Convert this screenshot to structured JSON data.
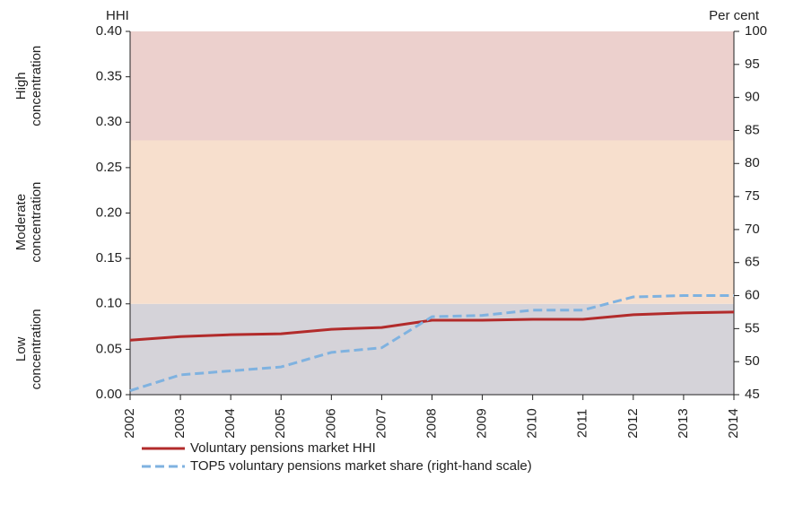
{
  "chart_data": {
    "type": "line",
    "y_axis_label": "HHI",
    "y2_axis_label": "Per cent",
    "categories": [
      "2002",
      "2003",
      "2004",
      "2005",
      "2006",
      "2007",
      "2008",
      "2009",
      "2010",
      "2011",
      "2012",
      "2013",
      "2014"
    ],
    "series": [
      {
        "name": "Voluntary pensions market HHI",
        "color": "#b22b2b",
        "dashed": false,
        "values": [
          0.06,
          0.064,
          0.066,
          0.067,
          0.072,
          0.074,
          0.082,
          0.082,
          0.083,
          0.083,
          0.088,
          0.09,
          0.091
        ]
      },
      {
        "name": "TOP5 voluntary pensions market share (right-hand scale)",
        "color": "#7fb2e0",
        "dashed": true,
        "axis": "y2",
        "values": [
          45.6,
          48.0,
          48.6,
          49.2,
          51.4,
          52.1,
          56.8,
          57.0,
          57.8,
          57.8,
          59.8,
          60.0,
          60.0
        ]
      }
    ],
    "bands": [
      {
        "label": [
          "Low",
          "concentration"
        ],
        "from": 0,
        "to": 0.1,
        "color": "#d5d3d9"
      },
      {
        "label": [
          "Moderate",
          "concentration"
        ],
        "from": 0.1,
        "to": 0.28,
        "color": "#f7dfcd"
      },
      {
        "label": [
          "High",
          "concentration"
        ],
        "from": 0.28,
        "to": 0.4,
        "color": "#ecd0cd"
      }
    ],
    "ylim": [
      0,
      0.4
    ],
    "yticks": [
      {
        "value": 0,
        "label": "0.00"
      },
      {
        "value": 0.05,
        "label": "0.05"
      },
      {
        "value": 0.1,
        "label": "0.10"
      },
      {
        "value": 0.15,
        "label": "0.15"
      },
      {
        "value": 0.2,
        "label": "0.20"
      },
      {
        "value": 0.25,
        "label": "0.25"
      },
      {
        "value": 0.3,
        "label": "0.30"
      },
      {
        "value": 0.35,
        "label": "0.35"
      },
      {
        "value": 0.4,
        "label": "0.40"
      }
    ],
    "y2lim": [
      45,
      100
    ],
    "y2ticks": [
      45,
      50,
      55,
      60,
      65,
      70,
      75,
      80,
      85,
      90,
      95,
      100
    ],
    "legend": "bottom-left"
  }
}
